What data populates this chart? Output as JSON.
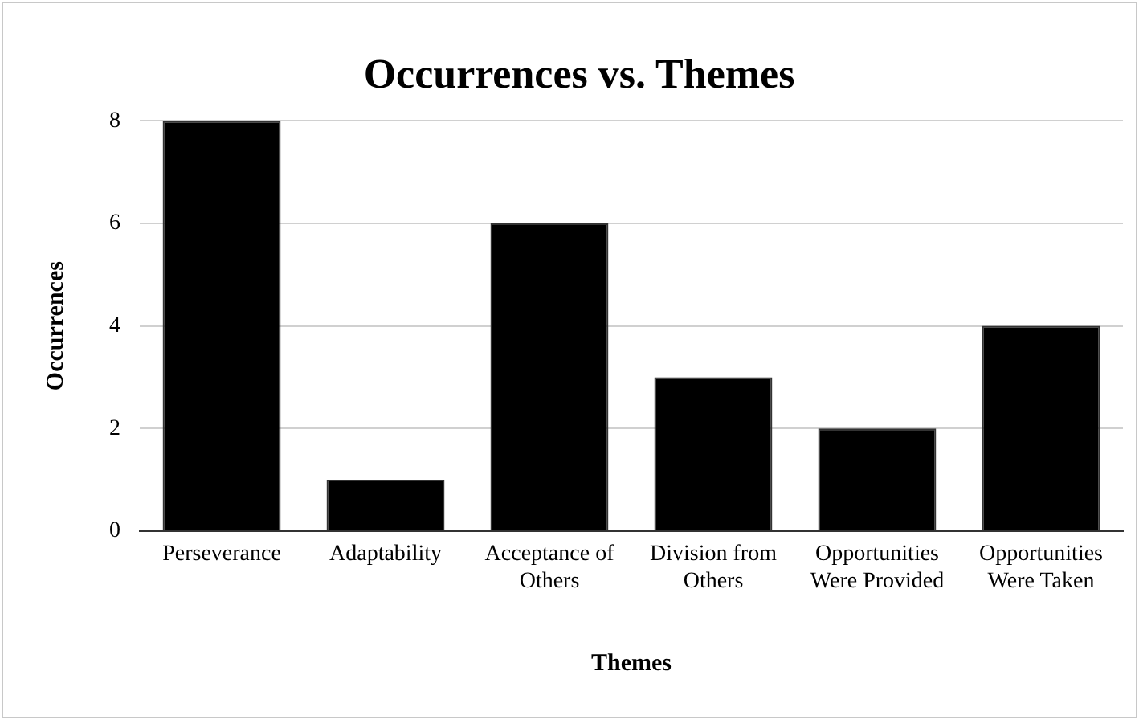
{
  "chart_data": {
    "type": "bar",
    "title": "Occurrences vs. Themes",
    "xlabel": "Themes",
    "ylabel": "Occurrences",
    "categories": [
      "Perseverance",
      "Adaptability",
      "Acceptance of Others",
      "Division from Others",
      "Opportunities Were Provided",
      "Opportunities Were Taken"
    ],
    "values": [
      8,
      1,
      6,
      3,
      2,
      4
    ],
    "color": "#000000",
    "ylim": [
      0,
      8
    ],
    "yticks": [
      0,
      2,
      4,
      6,
      8
    ],
    "grid": "y",
    "legend": false
  }
}
